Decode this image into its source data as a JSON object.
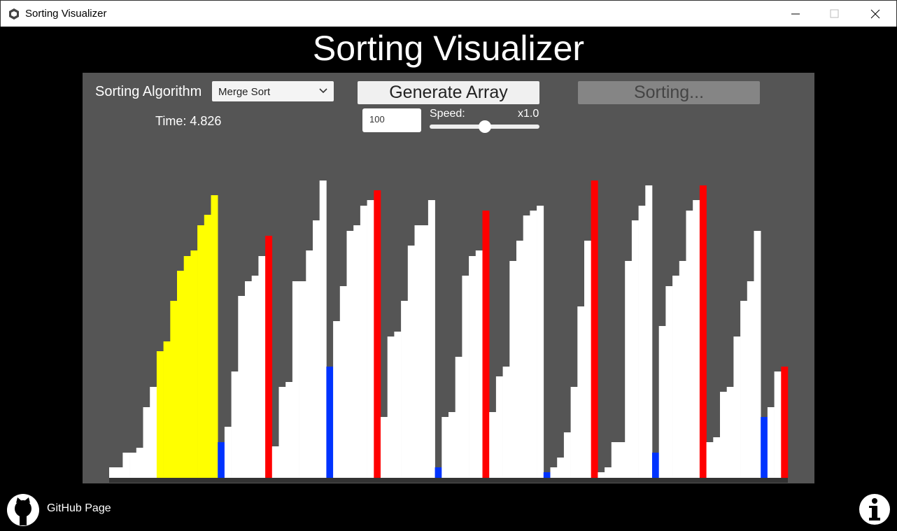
{
  "window": {
    "title": "Sorting Visualizer"
  },
  "header": {
    "title": "Sorting Visualizer"
  },
  "controls": {
    "algorithm_label": "Sorting Algorithm",
    "algorithm_selected": "Merge Sort",
    "generate_button": "Generate Array",
    "sort_button": "Sorting...",
    "size_input": "100",
    "speed_label": "Speed:",
    "speed_value": "x1.0",
    "speed_position": 0.5,
    "time_text": "Time: 4.826"
  },
  "array": {
    "values": [
      15,
      15,
      36,
      36,
      43,
      101,
      130,
      181,
      195,
      253,
      296,
      317,
      325,
      361,
      376,
      404,
      51,
      73,
      152,
      260,
      281,
      289,
      317,
      346,
      45,
      130,
      137,
      281,
      281,
      325,
      368,
      425,
      159,
      224,
      274,
      353,
      361,
      389,
      397,
      411,
      87,
      202,
      209,
      253,
      332,
      361,
      361,
      397,
      15,
      87,
      94,
      173,
      289,
      317,
      325,
      382,
      94,
      145,
      159,
      310,
      339,
      375,
      382,
      389,
      8,
      15,
      29,
      65,
      130,
      245,
      339,
      425,
      8,
      15,
      51,
      51,
      310,
      368,
      389,
      418,
      36,
      217,
      274,
      289,
      310,
      382,
      397,
      418,
      51,
      58,
      123,
      130,
      202,
      253,
      281,
      353,
      87,
      101,
      152,
      159
    ],
    "colors": [
      "#ffffff",
      "#ffffff",
      "#ffffff",
      "#ffffff",
      "#ffffff",
      "#ffffff",
      "#ffffff",
      "#ffff00",
      "#ffff00",
      "#ffff00",
      "#ffff00",
      "#ffff00",
      "#ffff00",
      "#ffff00",
      "#ffff00",
      "#ffff00",
      "#0033ff",
      "#ffffff",
      "#ffffff",
      "#ffffff",
      "#ffffff",
      "#ffffff",
      "#ffffff",
      "#ff0000",
      "#ffffff",
      "#ffffff",
      "#ffffff",
      "#ffffff",
      "#ffffff",
      "#ffffff",
      "#ffffff",
      "#ffffff",
      "#0033ff",
      "#ffffff",
      "#ffffff",
      "#ffffff",
      "#ffffff",
      "#ffffff",
      "#ffffff",
      "#ff0000",
      "#ffffff",
      "#ffffff",
      "#ffffff",
      "#ffffff",
      "#ffffff",
      "#ffffff",
      "#ffffff",
      "#ffffff",
      "#0033ff",
      "#ffffff",
      "#ffffff",
      "#ffffff",
      "#ffffff",
      "#ffffff",
      "#ffffff",
      "#ff0000",
      "#ffffff",
      "#ffffff",
      "#ffffff",
      "#ffffff",
      "#ffffff",
      "#ffffff",
      "#ffffff",
      "#ffffff",
      "#0033ff",
      "#ffffff",
      "#ffffff",
      "#ffffff",
      "#ffffff",
      "#ffffff",
      "#ffffff",
      "#ff0000",
      "#ffffff",
      "#ffffff",
      "#ffffff",
      "#ffffff",
      "#ffffff",
      "#ffffff",
      "#ffffff",
      "#ffffff",
      "#0033ff",
      "#ffffff",
      "#ffffff",
      "#ffffff",
      "#ffffff",
      "#ffffff",
      "#ffffff",
      "#ff0000",
      "#ffffff",
      "#ffffff",
      "#ffffff",
      "#ffffff",
      "#ffffff",
      "#ffffff",
      "#ffffff",
      "#ffffff",
      "#0033ff",
      "#ffffff",
      "#ffffff",
      "#ff0000"
    ]
  },
  "footer": {
    "github_label": "GitHub Page"
  }
}
